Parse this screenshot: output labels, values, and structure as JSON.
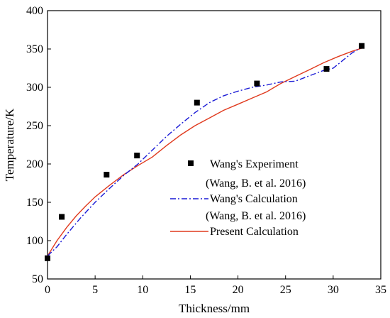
{
  "chart_data": {
    "type": "line",
    "xlabel": "Thickness/mm",
    "ylabel": "Temperature/K",
    "xlim": [
      0,
      35
    ],
    "ylim": [
      50,
      400
    ],
    "xticks": [
      0,
      5,
      10,
      15,
      20,
      25,
      30,
      35
    ],
    "yticks": [
      50,
      100,
      150,
      200,
      250,
      300,
      350,
      400
    ],
    "grid": false,
    "legend_position": "lower-right",
    "series": [
      {
        "name": "Wang's Experiment",
        "legend_subtitle": "(Wang, B. et al. 2016)",
        "kind": "scatter",
        "marker": "square",
        "color": "#000000",
        "x": [
          0.0,
          1.5,
          6.2,
          9.4,
          15.7,
          22.0,
          29.3,
          33.0
        ],
        "y": [
          77,
          131,
          186,
          211,
          280,
          305,
          324,
          354
        ]
      },
      {
        "name": "Wang's Calculation",
        "legend_subtitle": "(Wang, B. et al. 2016)",
        "kind": "line",
        "line_style": "dash-dot",
        "color": "#1a1ad6",
        "x": [
          0.0,
          1.0,
          2.0,
          3.5,
          5.0,
          6.5,
          8.0,
          9.5,
          11.0,
          12.5,
          14.0,
          15.5,
          17.0,
          18.5,
          20.0,
          21.5,
          23.0,
          24.5,
          26.0,
          27.5,
          29.0,
          30.0,
          31.0,
          32.0,
          33.0
        ],
        "y": [
          80,
          92,
          108,
          130,
          150,
          168,
          185,
          200,
          218,
          236,
          252,
          267,
          280,
          289,
          295,
          300,
          303,
          307,
          308,
          315,
          322,
          325,
          335,
          345,
          352
        ]
      },
      {
        "name": "Present Calculation",
        "kind": "line",
        "line_style": "solid",
        "color": "#e03a1e",
        "x": [
          0.0,
          1.0,
          2.0,
          3.0,
          4.0,
          5.0,
          6.5,
          8.0,
          9.5,
          11.0,
          12.5,
          14.0,
          15.5,
          17.0,
          18.5,
          20.0,
          21.5,
          23.0,
          24.5,
          26.0,
          27.5,
          29.0,
          30.5,
          32.0,
          33.0
        ],
        "y": [
          80,
          100,
          117,
          132,
          145,
          157,
          172,
          186,
          198,
          209,
          224,
          238,
          250,
          260,
          270,
          278,
          286,
          294,
          305,
          314,
          323,
          332,
          340,
          347,
          351
        ]
      }
    ]
  }
}
